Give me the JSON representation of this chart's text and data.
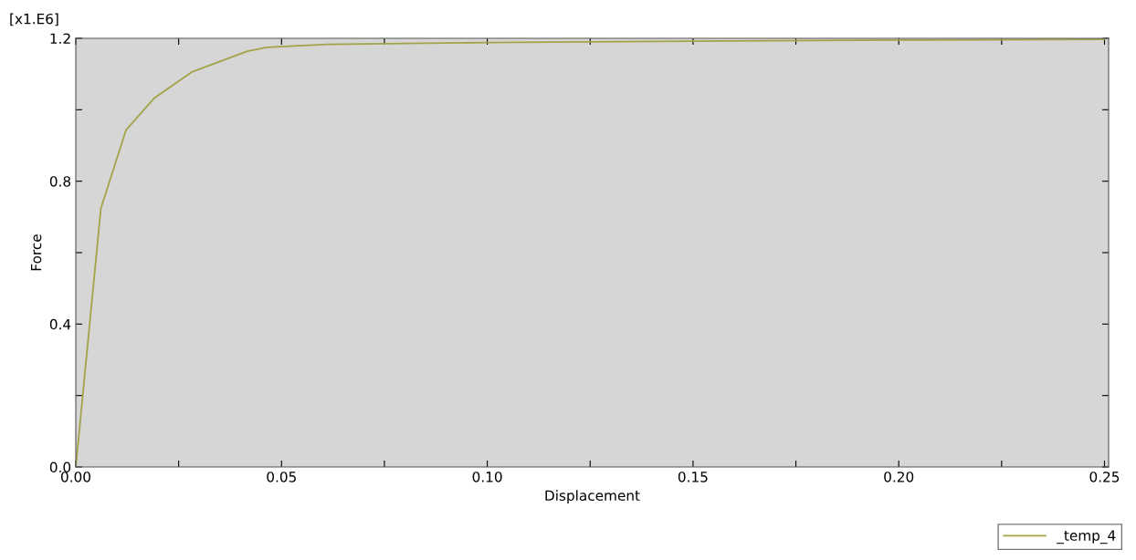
{
  "chart_data": {
    "type": "line",
    "xlabel": "Displacement",
    "ylabel": "Force",
    "annotations": [
      "[x1.E6]"
    ],
    "x": [
      0,
      0.0061,
      0.0122,
      0.0191,
      0.0281,
      0.0417,
      0.0465,
      0.0613,
      0.1,
      0.15,
      0.2,
      0.25
    ],
    "series": [
      {
        "name": "_temp_4",
        "color": "#a3a34a",
        "values": [
          0,
          0.724,
          0.943,
          1.033,
          1.105,
          1.164,
          1.175,
          1.183,
          1.188,
          1.192,
          1.195,
          1.197
        ]
      }
    ],
    "xlim": [
      0,
      0.251
    ],
    "ylim": [
      0,
      1.2
    ],
    "xticks": [
      {
        "value": 0,
        "label": "0.00"
      },
      {
        "value": 0.025,
        "label": null
      },
      {
        "value": 0.05,
        "label": "0.05"
      },
      {
        "value": 0.075,
        "label": null
      },
      {
        "value": 0.1,
        "label": "0.10"
      },
      {
        "value": 0.125,
        "label": null
      },
      {
        "value": 0.15,
        "label": "0.15"
      },
      {
        "value": 0.175,
        "label": null
      },
      {
        "value": 0.2,
        "label": "0.20"
      },
      {
        "value": 0.225,
        "label": null
      },
      {
        "value": 0.25,
        "label": "0.25"
      }
    ],
    "yticks": [
      {
        "value": 0,
        "label": "0.0"
      },
      {
        "value": 0.2,
        "label": null
      },
      {
        "value": 0.4,
        "label": "0.4"
      },
      {
        "value": 0.6,
        "label": null
      },
      {
        "value": 0.8,
        "label": "0.8"
      },
      {
        "value": 1.0,
        "label": null
      },
      {
        "value": 1.2,
        "label": "1.2"
      }
    ],
    "grid": false,
    "legend": "bottom right",
    "marker": "none",
    "line_style": "solid"
  }
}
